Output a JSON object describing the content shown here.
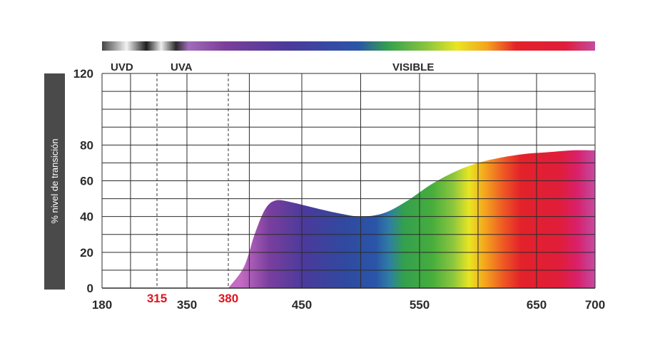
{
  "chart_data": {
    "type": "area",
    "ylabel": "% nivel de transición",
    "xlabel": "",
    "xlim": [
      180,
      700
    ],
    "ylim": [
      0,
      120
    ],
    "x_ticks": [
      {
        "value": 180,
        "label": "180",
        "highlight": false
      },
      {
        "value": 315,
        "label": "315",
        "highlight": true
      },
      {
        "value": 350,
        "label": "350",
        "highlight": false
      },
      {
        "value": 380,
        "label": "380",
        "highlight": true
      },
      {
        "value": 450,
        "label": "450",
        "highlight": false
      },
      {
        "value": 550,
        "label": "550",
        "highlight": false
      },
      {
        "value": 650,
        "label": "650",
        "highlight": false
      },
      {
        "value": 700,
        "label": "700",
        "highlight": false
      }
    ],
    "y_ticks": [
      0,
      20,
      40,
      60,
      80,
      120
    ],
    "region_labels": [
      "UVD",
      "UVA",
      "VISIBLE"
    ],
    "series": [
      {
        "x": [
          380,
          395,
          405,
          415,
          425,
          440,
          460,
          480,
          500,
          520,
          540,
          560,
          580,
          600,
          620,
          640,
          660,
          680,
          700
        ],
        "y": [
          0,
          12,
          30,
          44,
          49,
          48,
          45,
          42,
          40,
          42,
          49,
          58,
          65,
          70,
          73,
          75,
          76,
          77,
          77
        ]
      }
    ],
    "grid": true,
    "colors": {
      "highlight": "#e0141e",
      "axis_label_panel": "#4a4a4a",
      "grid": "#2b2b2b"
    }
  }
}
